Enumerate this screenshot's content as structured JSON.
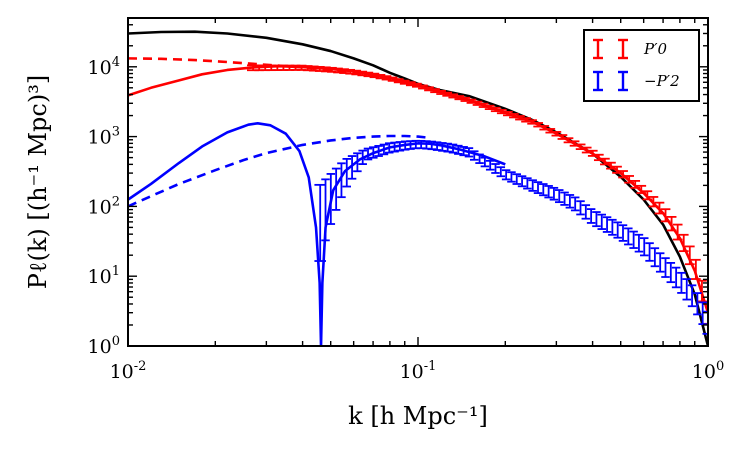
{
  "chart_data": {
    "type": "line",
    "xscale": "log",
    "yscale": "log",
    "xlim": [
      0.01,
      1.0
    ],
    "ylim": [
      1,
      50000
    ],
    "xlabel": "k [h Mpc⁻¹]",
    "ylabel": "Pℓ(k) [(h⁻¹ Mpc)³]",
    "x_ticks": [
      {
        "value": 0.01,
        "base": "10",
        "exp": "-2"
      },
      {
        "value": 0.1,
        "base": "10",
        "exp": "-1"
      },
      {
        "value": 1.0,
        "base": "10",
        "exp": "0"
      }
    ],
    "y_ticks": [
      {
        "value": 1,
        "base": "10",
        "exp": "0"
      },
      {
        "value": 10,
        "base": "10",
        "exp": "1"
      },
      {
        "value": 100,
        "base": "10",
        "exp": "2"
      },
      {
        "value": 1000,
        "base": "10",
        "exp": "3"
      },
      {
        "value": 10000,
        "base": "10",
        "exp": "4"
      }
    ],
    "legend": {
      "position": "top-right",
      "entries": [
        {
          "label": "P′0",
          "color": "#ff0000"
        },
        {
          "label": "−P′2",
          "color": "#0000ff"
        }
      ]
    },
    "series": [
      {
        "name": "black-model",
        "color": "#000000",
        "style": "solid",
        "points": [
          [
            0.01,
            30000
          ],
          [
            0.013,
            31500
          ],
          [
            0.017,
            31800
          ],
          [
            0.022,
            30000
          ],
          [
            0.03,
            26000
          ],
          [
            0.04,
            21000
          ],
          [
            0.05,
            16800
          ],
          [
            0.06,
            13200
          ],
          [
            0.07,
            10500
          ],
          [
            0.08,
            8200
          ],
          [
            0.09,
            6800
          ],
          [
            0.1,
            5700
          ],
          [
            0.12,
            4600
          ],
          [
            0.15,
            3800
          ],
          [
            0.2,
            2500
          ],
          [
            0.25,
            1700
          ],
          [
            0.3,
            1150
          ],
          [
            0.4,
            570
          ],
          [
            0.5,
            265
          ],
          [
            0.6,
            125
          ],
          [
            0.7,
            55
          ],
          [
            0.8,
            19
          ],
          [
            0.9,
            5.5
          ],
          [
            1.0,
            1.0
          ]
        ]
      },
      {
        "name": "red-solid-model",
        "color": "#ff0000",
        "style": "solid",
        "points": [
          [
            0.01,
            3900
          ],
          [
            0.012,
            5000
          ],
          [
            0.015,
            6400
          ],
          [
            0.018,
            7800
          ],
          [
            0.022,
            9000
          ],
          [
            0.027,
            9800
          ],
          [
            0.033,
            10200
          ],
          [
            0.04,
            9900
          ],
          [
            0.05,
            9300
          ],
          [
            0.06,
            8600
          ],
          [
            0.07,
            7700
          ],
          [
            0.08,
            6900
          ],
          [
            0.1,
            5400
          ],
          [
            0.12,
            4300
          ],
          [
            0.15,
            3300
          ],
          [
            0.2,
            2200
          ],
          [
            0.25,
            1600
          ],
          [
            0.3,
            1100
          ],
          [
            0.4,
            570
          ],
          [
            0.5,
            300
          ],
          [
            0.6,
            155
          ],
          [
            0.7,
            80
          ],
          [
            0.8,
            35
          ],
          [
            0.9,
            12
          ],
          [
            1.0,
            3.0
          ]
        ]
      },
      {
        "name": "red-dashed-model",
        "color": "#ff0000",
        "style": "dashed",
        "points": [
          [
            0.01,
            13200
          ],
          [
            0.013,
            13000
          ],
          [
            0.017,
            12500
          ],
          [
            0.022,
            11700
          ],
          [
            0.03,
            10700
          ],
          [
            0.04,
            9800
          ],
          [
            0.05,
            9000
          ],
          [
            0.07,
            7400
          ],
          [
            0.1,
            5400
          ],
          [
            0.15,
            3300
          ],
          [
            0.2,
            2200
          ]
        ]
      },
      {
        "name": "blue-solid-model",
        "color": "#0000ff",
        "style": "solid",
        "points": [
          [
            0.01,
            125
          ],
          [
            0.012,
            210
          ],
          [
            0.015,
            420
          ],
          [
            0.018,
            720
          ],
          [
            0.022,
            1150
          ],
          [
            0.026,
            1480
          ],
          [
            0.028,
            1550
          ],
          [
            0.031,
            1450
          ],
          [
            0.035,
            1100
          ],
          [
            0.039,
            620
          ],
          [
            0.042,
            260
          ],
          [
            0.0445,
            50
          ],
          [
            0.0458,
            8
          ],
          [
            0.0463,
            1.0
          ],
          [
            0.0468,
            8
          ],
          [
            0.048,
            50
          ],
          [
            0.051,
            170
          ],
          [
            0.056,
            320
          ],
          [
            0.063,
            470
          ],
          [
            0.07,
            580
          ],
          [
            0.08,
            700
          ],
          [
            0.09,
            760
          ],
          [
            0.1,
            800
          ],
          [
            0.11,
            790
          ],
          [
            0.12,
            750
          ],
          [
            0.14,
            650
          ],
          [
            0.17,
            520
          ],
          [
            0.2,
            400
          ]
        ]
      },
      {
        "name": "blue-dashed-model",
        "color": "#0000ff",
        "style": "dashed",
        "points": [
          [
            0.01,
            100
          ],
          [
            0.012,
            140
          ],
          [
            0.015,
            210
          ],
          [
            0.02,
            330
          ],
          [
            0.025,
            460
          ],
          [
            0.03,
            580
          ],
          [
            0.04,
            760
          ],
          [
            0.05,
            880
          ],
          [
            0.06,
            960
          ],
          [
            0.07,
            1000
          ],
          [
            0.08,
            1020
          ],
          [
            0.09,
            1020
          ],
          [
            0.1,
            1000
          ],
          [
            0.11,
            960
          ]
        ]
      }
    ],
    "error_series": [
      {
        "name": "red-measurements",
        "color": "#ff0000",
        "k_min": 0.027,
        "k_max": 1.0,
        "count": 76,
        "anchors": [
          [
            0.027,
            9700
          ],
          [
            0.04,
            9700
          ],
          [
            0.05,
            9100
          ],
          [
            0.06,
            8400
          ],
          [
            0.07,
            7600
          ],
          [
            0.08,
            6800
          ],
          [
            0.1,
            5400
          ],
          [
            0.12,
            4300
          ],
          [
            0.15,
            3300
          ],
          [
            0.2,
            2200
          ],
          [
            0.25,
            1600
          ],
          [
            0.3,
            1100
          ],
          [
            0.4,
            580
          ],
          [
            0.5,
            310
          ],
          [
            0.6,
            165
          ],
          [
            0.7,
            85
          ],
          [
            0.8,
            40
          ],
          [
            0.9,
            15
          ],
          [
            1.0,
            3.2
          ]
        ],
        "rel_err": [
          [
            0.027,
            0.08
          ],
          [
            0.1,
            0.05
          ],
          [
            0.3,
            0.06
          ],
          [
            0.6,
            0.12
          ],
          [
            1.0,
            0.35
          ]
        ]
      },
      {
        "name": "blue-measurements",
        "color": "#0000ff",
        "k_min": 0.046,
        "k_max": 1.0,
        "count": 74,
        "anchors": [
          [
            0.046,
            110
          ],
          [
            0.056,
            320
          ],
          [
            0.066,
            560
          ],
          [
            0.08,
            700
          ],
          [
            0.09,
            750
          ],
          [
            0.1,
            780
          ],
          [
            0.11,
            760
          ],
          [
            0.13,
            690
          ],
          [
            0.15,
            600
          ],
          [
            0.2,
            290
          ],
          [
            0.25,
            200
          ],
          [
            0.3,
            150
          ],
          [
            0.35,
            110
          ],
          [
            0.4,
            72
          ],
          [
            0.5,
            45
          ],
          [
            0.6,
            28
          ],
          [
            0.7,
            15
          ],
          [
            0.8,
            9
          ],
          [
            0.9,
            5
          ],
          [
            1.0,
            2.3
          ]
        ],
        "rel_err": [
          [
            0.046,
            0.85
          ],
          [
            0.056,
            0.45
          ],
          [
            0.066,
            0.18
          ],
          [
            0.1,
            0.12
          ],
          [
            0.2,
            0.15
          ],
          [
            0.5,
            0.25
          ],
          [
            1.0,
            0.35
          ]
        ]
      }
    ]
  }
}
